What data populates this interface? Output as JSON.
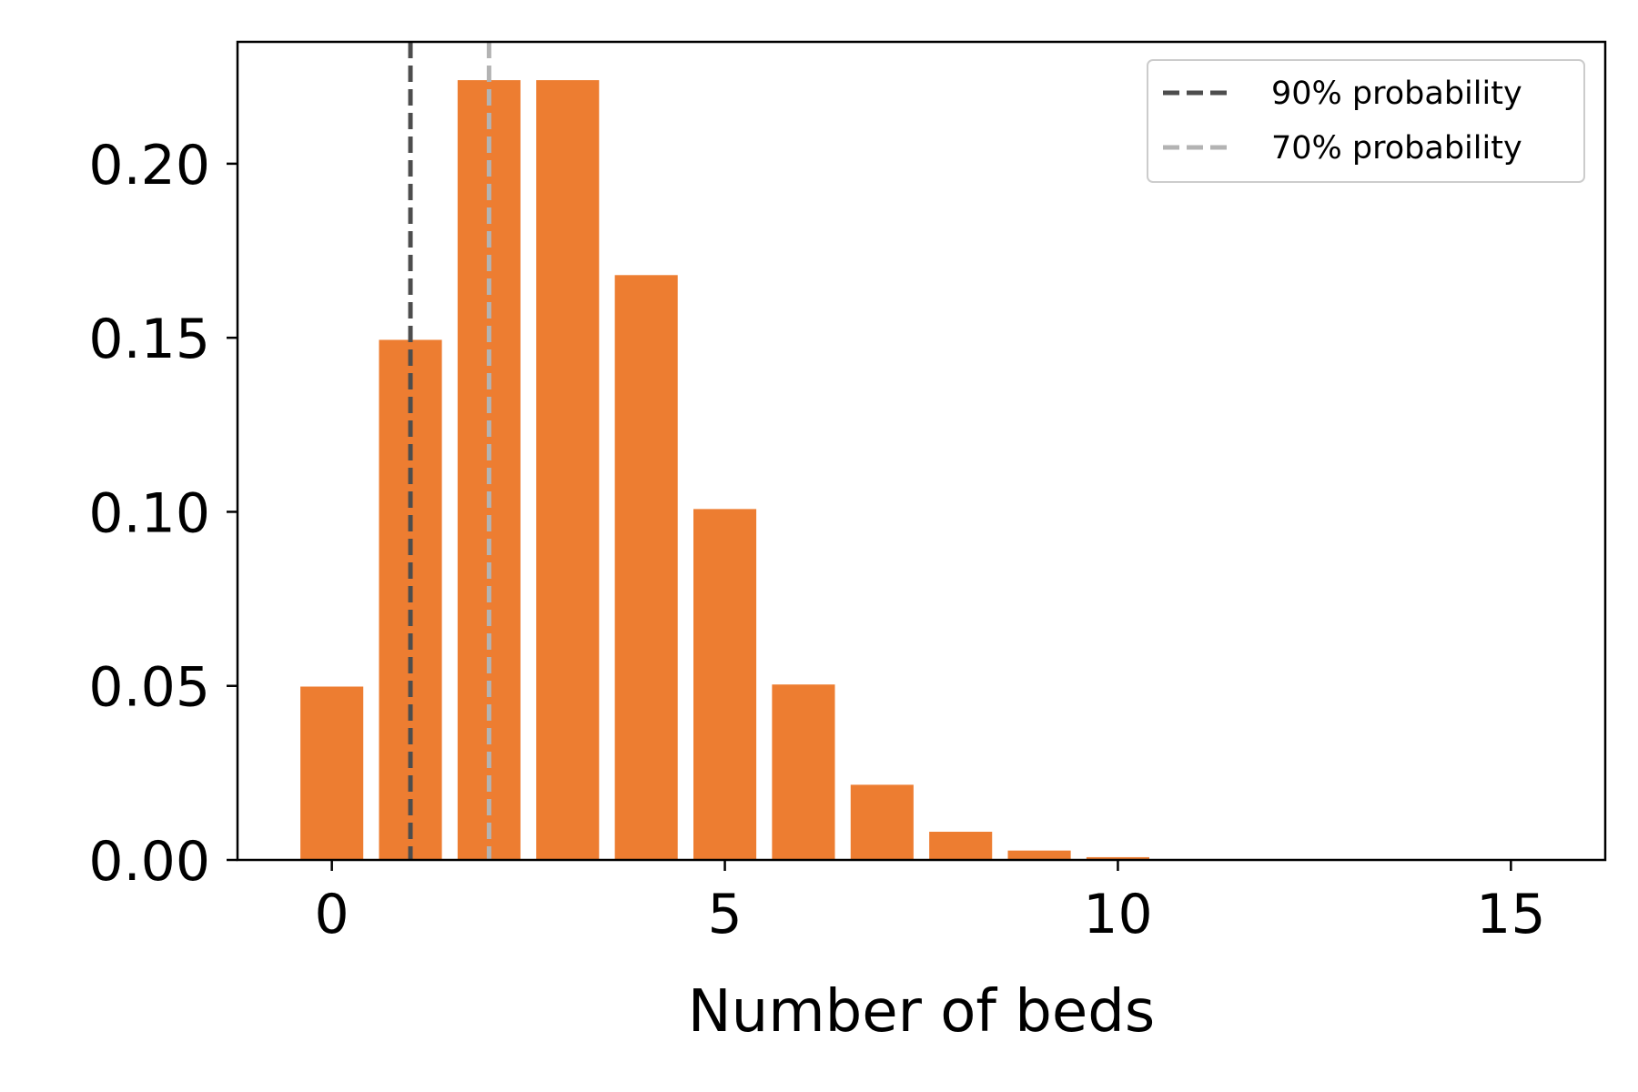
{
  "chart_data": {
    "type": "bar",
    "title": "",
    "xlabel": "Number of beds",
    "ylabel": "",
    "x": [
      0,
      1,
      2,
      3,
      4,
      5,
      6,
      7,
      8,
      9,
      10,
      11,
      12,
      13,
      14,
      15
    ],
    "values": [
      0.0498,
      0.1494,
      0.224,
      0.224,
      0.168,
      0.1008,
      0.0504,
      0.0216,
      0.0081,
      0.0027,
      0.0008,
      0.0002,
      0.0001,
      0.0,
      0.0,
      0.0
    ],
    "xlim": [
      -1.2,
      16.2
    ],
    "ylim": [
      0,
      0.235
    ],
    "x_ticks": [
      0,
      5,
      10,
      15
    ],
    "x_tick_labels": [
      "0",
      "5",
      "10",
      "15"
    ],
    "y_ticks": [
      0,
      0.05,
      0.1,
      0.15,
      0.2
    ],
    "y_tick_labels": [
      "0.00",
      "0.05",
      "0.10",
      "0.15",
      "0.20"
    ],
    "bar_color": "#ed7d31",
    "grid": false,
    "reference_lines": [
      {
        "label": "90% probability",
        "x": 1,
        "color": "#4d4d4d",
        "style": "dashed"
      },
      {
        "label": "70% probability",
        "x": 2,
        "color": "#b3b3b3",
        "style": "dashed"
      }
    ],
    "legend": {
      "position": "top-right",
      "entries": [
        "90% probability",
        "70% probability"
      ]
    }
  }
}
